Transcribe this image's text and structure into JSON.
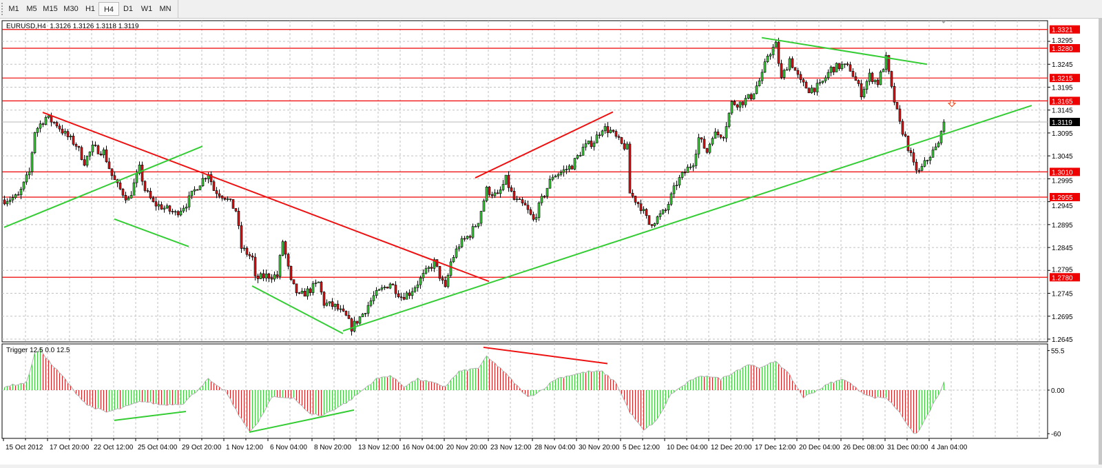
{
  "toolbar": {
    "timeframes": [
      "M1",
      "M5",
      "M15",
      "M30",
      "H1",
      "H4",
      "D1",
      "W1",
      "MN"
    ],
    "active": "H4"
  },
  "header": {
    "symbol_line": "EURUSD,H4  1.3126 1.3126 1.3118 1.3119"
  },
  "indicator": {
    "label": "Trigger 12.5 0.0 12.5"
  },
  "colors": {
    "bull": "#33cc33",
    "bear": "#dd1111",
    "level": "#ee0000",
    "trend_green": "#33cc33",
    "trend_red": "#ee1111",
    "grid": "#c0c0c0"
  },
  "chart_data": {
    "type": "candlestick",
    "symbol": "EURUSD",
    "timeframe": "H4",
    "ylim": [
      1.2645,
      1.3321
    ],
    "price_ticks": [
      "1.3295",
      "1.3245",
      "1.3195",
      "1.3145",
      "1.3095",
      "1.3045",
      "1.2995",
      "1.2945",
      "1.2895",
      "1.2845",
      "1.2795",
      "1.2745",
      "1.2695",
      "1.2645"
    ],
    "levels": [
      "1.3321",
      "1.3280",
      "1.3215",
      "1.3165",
      "1.3010",
      "1.2955",
      "1.2780"
    ],
    "current_price": "1.3119",
    "time_labels": [
      "15 Oct 2012",
      "17 Oct 20:00",
      "22 Oct 12:00",
      "25 Oct 04:00",
      "29 Oct 20:00",
      "1 Nov 12:00",
      "6 Nov 04:00",
      "8 Nov 20:00",
      "13 Nov 12:00",
      "16 Nov 04:00",
      "20 Nov 20:00",
      "23 Nov 12:00",
      "28 Nov 04:00",
      "30 Nov 20:00",
      "5 Dec 12:00",
      "10 Dec 04:00",
      "12 Dec 20:00",
      "17 Dec 12:00",
      "20 Dec 04:00",
      "26 Dec 08:00",
      "31 Dec 00:00",
      "4 Jan 04:00"
    ],
    "bars_per_time_label": 16,
    "close_path_bar_price": [
      [
        0,
        1.2949
      ],
      [
        5,
        1.2956
      ],
      [
        9,
        1.3009
      ],
      [
        11,
        1.3099
      ],
      [
        15,
        1.3129
      ],
      [
        19,
        1.3114
      ],
      [
        22,
        1.3092
      ],
      [
        26,
        1.3069
      ],
      [
        29,
        1.3032
      ],
      [
        32,
        1.3062
      ],
      [
        36,
        1.3054
      ],
      [
        39,
        1.3002
      ],
      [
        41,
        1.2979
      ],
      [
        45,
        1.2949
      ],
      [
        49,
        1.3017
      ],
      [
        51,
        1.2971
      ],
      [
        54,
        1.2941
      ],
      [
        57,
        1.2934
      ],
      [
        62,
        1.2919
      ],
      [
        66,
        1.2941
      ],
      [
        70,
        1.2979
      ],
      [
        74,
        1.3009
      ],
      [
        76,
        1.2971
      ],
      [
        80,
        1.2956
      ],
      [
        84,
        1.2926
      ],
      [
        86,
        1.2844
      ],
      [
        90,
        1.2821
      ],
      [
        91,
        1.2776
      ],
      [
        95,
        1.2783
      ],
      [
        99,
        1.2783
      ],
      [
        101,
        1.2859
      ],
      [
        104,
        1.2768
      ],
      [
        107,
        1.2738
      ],
      [
        111,
        1.2753
      ],
      [
        114,
        1.2768
      ],
      [
        116,
        1.2723
      ],
      [
        120,
        1.2716
      ],
      [
        124,
        1.2693
      ],
      [
        126,
        1.267
      ],
      [
        130,
        1.27
      ],
      [
        134,
        1.2738
      ],
      [
        137,
        1.2753
      ],
      [
        140,
        1.2768
      ],
      [
        144,
        1.2738
      ],
      [
        147,
        1.2746
      ],
      [
        150,
        1.2768
      ],
      [
        154,
        1.2798
      ],
      [
        156,
        1.2813
      ],
      [
        160,
        1.2753
      ],
      [
        162,
        1.2813
      ],
      [
        165,
        1.2851
      ],
      [
        169,
        1.2874
      ],
      [
        172,
        1.2904
      ],
      [
        175,
        1.2971
      ],
      [
        179,
        1.2956
      ],
      [
        182,
        1.2994
      ],
      [
        185,
        1.2949
      ],
      [
        189,
        1.2934
      ],
      [
        192,
        1.2904
      ],
      [
        195,
        1.2949
      ],
      [
        199,
        1.3002
      ],
      [
        202,
        1.3009
      ],
      [
        206,
        1.3024
      ],
      [
        210,
        1.3062
      ],
      [
        214,
        1.3077
      ],
      [
        217,
        1.3107
      ],
      [
        220,
        1.3099
      ],
      [
        224,
        1.3069
      ],
      [
        226,
        1.3062
      ],
      [
        227,
        1.2964
      ],
      [
        231,
        1.2934
      ],
      [
        234,
        1.2896
      ],
      [
        236,
        1.2904
      ],
      [
        240,
        1.2926
      ],
      [
        244,
        1.2986
      ],
      [
        246,
        1.3002
      ],
      [
        250,
        1.3032
      ],
      [
        252,
        1.3084
      ],
      [
        255,
        1.3054
      ],
      [
        257,
        1.3092
      ],
      [
        261,
        1.3092
      ],
      [
        264,
        1.316
      ],
      [
        267,
        1.316
      ],
      [
        271,
        1.3175
      ],
      [
        275,
        1.322
      ],
      [
        277,
        1.3265
      ],
      [
        280,
        1.3287
      ],
      [
        282,
        1.3212
      ],
      [
        285,
        1.3257
      ],
      [
        289,
        1.3205
      ],
      [
        292,
        1.319
      ],
      [
        296,
        1.3197
      ],
      [
        300,
        1.3235
      ],
      [
        304,
        1.3242
      ],
      [
        307,
        1.3235
      ],
      [
        311,
        1.3182
      ],
      [
        314,
        1.322
      ],
      [
        317,
        1.3205
      ],
      [
        320,
        1.3257
      ],
      [
        322,
        1.319
      ],
      [
        325,
        1.3114
      ],
      [
        327,
        1.3084
      ],
      [
        330,
        1.3024
      ],
      [
        332,
        1.3009
      ],
      [
        336,
        1.3047
      ],
      [
        339,
        1.3069
      ],
      [
        340,
        1.3107
      ],
      [
        341,
        1.3119
      ]
    ],
    "trendlines": [
      {
        "color": "red",
        "from": [
          14,
          1.314
        ],
        "to": [
          176,
          1.2771
        ]
      },
      {
        "color": "green",
        "from": [
          0,
          1.2889
        ],
        "to": [
          72,
          1.3066
        ]
      },
      {
        "color": "green",
        "from": [
          40,
          1.2907
        ],
        "to": [
          67,
          1.2847
        ]
      },
      {
        "color": "green",
        "from": [
          90,
          1.2761
        ],
        "to": [
          123,
          1.2657
        ]
      },
      {
        "color": "green",
        "from": [
          123,
          1.2663
        ],
        "to": [
          373,
          1.3155
        ]
      },
      {
        "color": "red",
        "from": [
          171,
          1.2997
        ],
        "to": [
          221,
          1.3141
        ]
      },
      {
        "color": "green",
        "from": [
          275,
          1.3303
        ],
        "to": [
          335,
          1.3245
        ]
      }
    ],
    "sell_arrow": [
      344,
      1.316
    ],
    "indicator": {
      "name": "Trigger",
      "ylim": [
        -60,
        55.5
      ],
      "ticks": [
        "55.5",
        "0.00",
        "-60"
      ],
      "path_bar_value": [
        [
          0,
          5
        ],
        [
          8,
          10
        ],
        [
          11,
          50
        ],
        [
          13,
          55
        ],
        [
          17,
          35
        ],
        [
          22,
          15
        ],
        [
          25,
          0
        ],
        [
          30,
          -20
        ],
        [
          37,
          -30
        ],
        [
          42,
          -25
        ],
        [
          50,
          -15
        ],
        [
          57,
          -20
        ],
        [
          65,
          -18
        ],
        [
          70,
          0
        ],
        [
          74,
          15
        ],
        [
          77,
          5
        ],
        [
          80,
          0
        ],
        [
          86,
          -40
        ],
        [
          89,
          -55
        ],
        [
          92,
          -45
        ],
        [
          97,
          -10
        ],
        [
          105,
          -10
        ],
        [
          110,
          -30
        ],
        [
          115,
          -35
        ],
        [
          120,
          -25
        ],
        [
          125,
          -15
        ],
        [
          130,
          0
        ],
        [
          135,
          15
        ],
        [
          140,
          20
        ],
        [
          145,
          5
        ],
        [
          150,
          15
        ],
        [
          155,
          10
        ],
        [
          160,
          5
        ],
        [
          165,
          25
        ],
        [
          172,
          30
        ],
        [
          175,
          45
        ],
        [
          180,
          30
        ],
        [
          185,
          10
        ],
        [
          190,
          -10
        ],
        [
          195,
          0
        ],
        [
          200,
          15
        ],
        [
          205,
          20
        ],
        [
          212,
          25
        ],
        [
          217,
          25
        ],
        [
          222,
          10
        ],
        [
          227,
          -30
        ],
        [
          232,
          -55
        ],
        [
          237,
          -40
        ],
        [
          242,
          -5
        ],
        [
          250,
          15
        ],
        [
          255,
          20
        ],
        [
          260,
          15
        ],
        [
          265,
          25
        ],
        [
          270,
          35
        ],
        [
          275,
          30
        ],
        [
          280,
          40
        ],
        [
          285,
          20
        ],
        [
          290,
          -10
        ],
        [
          295,
          0
        ],
        [
          300,
          10
        ],
        [
          305,
          15
        ],
        [
          310,
          0
        ],
        [
          315,
          -10
        ],
        [
          320,
          -10
        ],
        [
          325,
          -30
        ],
        [
          330,
          -60
        ],
        [
          332,
          -55
        ],
        [
          337,
          -20
        ],
        [
          340,
          0
        ],
        [
          341,
          10
        ]
      ],
      "trendlines": [
        {
          "color": "red",
          "from": [
            174,
            58
          ],
          "to": [
            219,
            36
          ]
        },
        {
          "color": "green",
          "from": [
            40,
            -41
          ],
          "to": [
            66,
            -29
          ]
        },
        {
          "color": "green",
          "from": [
            89,
            -57
          ],
          "to": [
            127,
            -27
          ]
        }
      ]
    }
  }
}
